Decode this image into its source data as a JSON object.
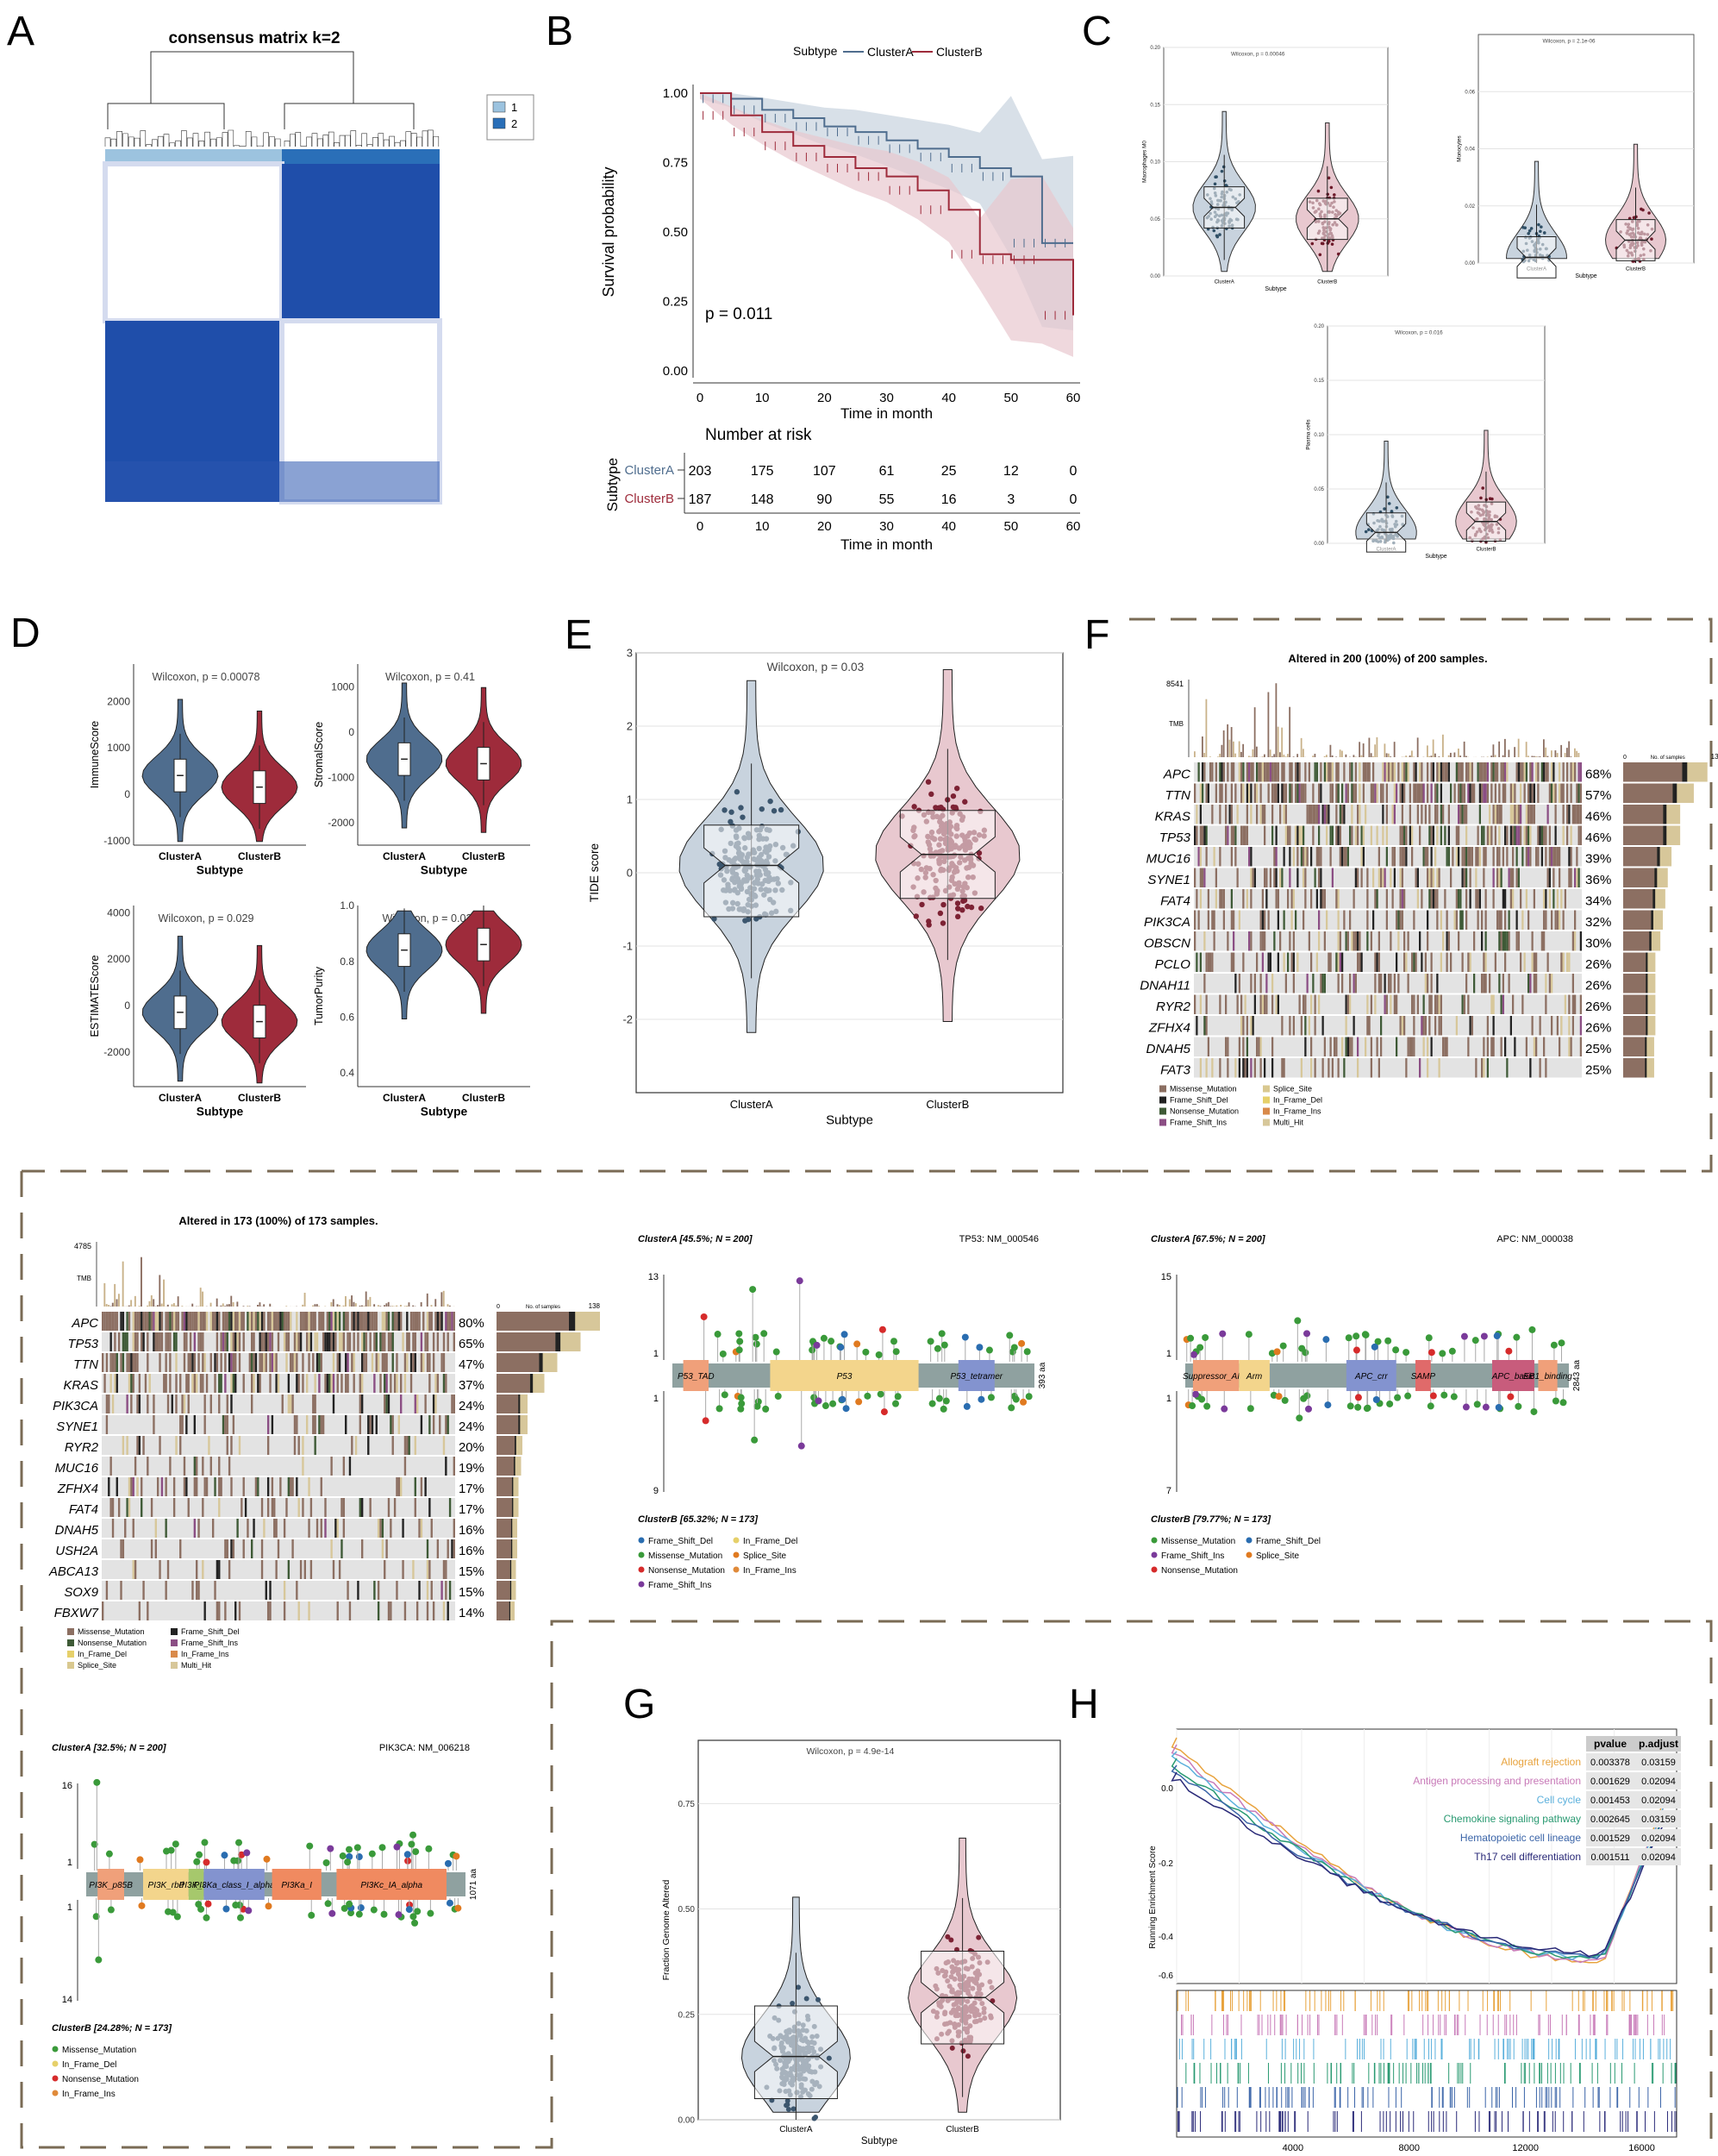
{
  "panel_letters": [
    "A",
    "B",
    "C",
    "D",
    "E",
    "F",
    "G",
    "H"
  ],
  "panelA": {
    "title": "consensus matrix k=2",
    "legend": [
      "1",
      "2"
    ]
  },
  "chart_data": [
    {
      "panel": "B",
      "type": "line",
      "legend_title": "Subtype",
      "series": [
        {
          "name": "ClusterA",
          "x": [
            0,
            5,
            10,
            15,
            20,
            25,
            30,
            35,
            40,
            45,
            50,
            55,
            60
          ],
          "y": [
            1.0,
            0.98,
            0.94,
            0.91,
            0.88,
            0.86,
            0.83,
            0.8,
            0.77,
            0.73,
            0.7,
            0.46,
            0.46
          ]
        },
        {
          "name": "ClusterB",
          "x": [
            0,
            5,
            10,
            15,
            20,
            25,
            30,
            35,
            40,
            45,
            50,
            55,
            60
          ],
          "y": [
            1.0,
            0.92,
            0.86,
            0.81,
            0.77,
            0.73,
            0.7,
            0.65,
            0.58,
            0.42,
            0.4,
            0.4,
            0.2
          ]
        }
      ],
      "xlabel": "Time in month",
      "ylabel": "Survival probability",
      "xlim": [
        0,
        60
      ],
      "ylim": [
        0,
        1
      ],
      "xticks": [
        "0",
        "10",
        "20",
        "30",
        "40",
        "50",
        "60"
      ],
      "yticks": [
        "0.00",
        "0.25",
        "0.50",
        "0.75",
        "1.00"
      ],
      "annotation": "p = 0.011",
      "risk_table": {
        "title": "Number at risk",
        "ylabel": "Subtype",
        "rows": [
          {
            "name": "ClusterA",
            "values": [
              "203",
              "175",
              "107",
              "61",
              "25",
              "12",
              "0"
            ]
          },
          {
            "name": "ClusterB",
            "values": [
              "187",
              "148",
              "90",
              "55",
              "16",
              "3",
              "0"
            ]
          }
        ],
        "xlabel": "Time in month"
      }
    },
    {
      "panel": "C1",
      "type": "box",
      "title": "Wilcoxon, p = 0.00046",
      "ylabel": "Macrophages M0",
      "xlabel": "Subtype",
      "categories": [
        "ClusterA",
        "ClusterB"
      ],
      "medians": [
        0.06,
        0.05
      ],
      "ylim": [
        0,
        0.2
      ],
      "yticks": [
        "0.00",
        "0.05",
        "0.10",
        "0.15",
        "0.20"
      ]
    },
    {
      "panel": "C2",
      "type": "box",
      "title": "Wilcoxon, p = 2.1e-06",
      "ylabel": "Monocytes",
      "xlabel": "Subtype",
      "categories": [
        "ClusterA",
        "ClusterB"
      ],
      "medians": [
        0.002,
        0.008
      ],
      "ylim": [
        0,
        0.08
      ],
      "yticks": [
        "0.00",
        "0.02",
        "0.04",
        "0.06"
      ]
    },
    {
      "panel": "C3",
      "type": "box",
      "title": "Wilcoxon, p = 0.016",
      "ylabel": "Plasma cells",
      "xlabel": "Subtype",
      "categories": [
        "ClusterA",
        "ClusterB"
      ],
      "medians": [
        0.01,
        0.02
      ],
      "ylim": [
        0,
        0.2
      ],
      "yticks": [
        "0.00",
        "0.05",
        "0.10",
        "0.15",
        "0.20"
      ]
    },
    {
      "panel": "D1",
      "type": "violin",
      "title": "Wilcoxon, p = 0.00078",
      "ylabel": "ImmuneScore",
      "xlabel": "Subtype",
      "categories": [
        "ClusterA",
        "ClusterB"
      ],
      "medians": [
        400,
        150
      ],
      "ylim": [
        -1100,
        2800
      ],
      "yticks": [
        "-1000",
        "0",
        "1000",
        "2000"
      ]
    },
    {
      "panel": "D2",
      "type": "violin",
      "title": "Wilcoxon, p = 0.41",
      "ylabel": "StromalScore",
      "xlabel": "Subtype",
      "categories": [
        "ClusterA",
        "ClusterB"
      ],
      "medians": [
        -600,
        -700
      ],
      "ylim": [
        -2500,
        1500
      ],
      "yticks": [
        "-2000",
        "-1000",
        "0",
        "1000"
      ]
    },
    {
      "panel": "D3",
      "type": "violin",
      "title": "Wilcoxon, p = 0.029",
      "ylabel": "ESTIMATEScore",
      "xlabel": "Subtype",
      "categories": [
        "ClusterA",
        "ClusterB"
      ],
      "medians": [
        -300,
        -700
      ],
      "ylim": [
        -3500,
        4300
      ],
      "yticks": [
        "-2000",
        "0",
        "2000",
        "4000"
      ]
    },
    {
      "panel": "D4",
      "type": "violin",
      "title": "Wilcoxon, p = 0.029",
      "ylabel": "TumorPurity",
      "xlabel": "Subtype",
      "categories": [
        "ClusterA",
        "ClusterB"
      ],
      "medians": [
        0.84,
        0.86
      ],
      "ylim": [
        0.35,
        1.0
      ],
      "yticks": [
        "0.4",
        "0.6",
        "0.8",
        "1.0"
      ]
    },
    {
      "panel": "E",
      "type": "violin",
      "title": "Wilcoxon, p = 0.03",
      "ylabel": "TIDE score",
      "xlabel": "Subtype",
      "categories": [
        "ClusterA",
        "ClusterB"
      ],
      "medians": [
        0.1,
        0.25
      ],
      "q1": [
        -0.6,
        -0.35
      ],
      "q3": [
        0.65,
        0.85
      ],
      "ylim": [
        -3,
        3
      ],
      "yticks": [
        "-2",
        "-1",
        "0",
        "1",
        "2",
        "3"
      ]
    },
    {
      "panel": "G",
      "type": "violin",
      "title": "Wilcoxon, p = 4.9e-14",
      "ylabel": "Fraction Genome Altered",
      "xlabel": "Subtype",
      "categories": [
        "ClusterA",
        "ClusterB"
      ],
      "medians": [
        0.15,
        0.29
      ],
      "q1": [
        0.05,
        0.18
      ],
      "q3": [
        0.27,
        0.4
      ],
      "ylim": [
        0,
        0.9
      ],
      "yticks": [
        "0.00",
        "0.25",
        "0.50",
        "0.75"
      ]
    }
  ],
  "panelF": {
    "title": "Altered in 200 (100%) of 200 samples.",
    "tmb_max": "8541",
    "tmb_label": "TMB",
    "ns_max": "135",
    "ns_min": "0",
    "ns_label": "No. of samples",
    "genes": [
      [
        "APC",
        "68%"
      ],
      [
        "TTN",
        "57%"
      ],
      [
        "KRAS",
        "46%"
      ],
      [
        "TP53",
        "46%"
      ],
      [
        "MUC16",
        "39%"
      ],
      [
        "SYNE1",
        "36%"
      ],
      [
        "FAT4",
        "34%"
      ],
      [
        "PIK3CA",
        "32%"
      ],
      [
        "OBSCN",
        "30%"
      ],
      [
        "PCLO",
        "26%"
      ],
      [
        "DNAH11",
        "26%"
      ],
      [
        "RYR2",
        "26%"
      ],
      [
        "ZFHX4",
        "26%"
      ],
      [
        "DNAH5",
        "25%"
      ],
      [
        "FAT3",
        "25%"
      ]
    ],
    "legend": [
      "Missense_Mutation",
      "Splice_Site",
      "Frame_Shift_Del",
      "In_Frame_Del",
      "Nonsense_Mutation",
      "In_Frame_Ins",
      "Frame_Shift_Ins",
      "Multi_Hit"
    ]
  },
  "panelF2": {
    "title": "Altered in 173 (100%) of 173 samples.",
    "tmb_max": "4785",
    "tmb_label": "TMB",
    "ns_max": "138",
    "ns_min": "0",
    "ns_label": "No. of samples",
    "genes": [
      [
        "APC",
        "80%"
      ],
      [
        "TP53",
        "65%"
      ],
      [
        "TTN",
        "47%"
      ],
      [
        "KRAS",
        "37%"
      ],
      [
        "PIK3CA",
        "24%"
      ],
      [
        "SYNE1",
        "24%"
      ],
      [
        "RYR2",
        "20%"
      ],
      [
        "MUC16",
        "19%"
      ],
      [
        "ZFHX4",
        "17%"
      ],
      [
        "FAT4",
        "17%"
      ],
      [
        "DNAH5",
        "16%"
      ],
      [
        "USH2A",
        "16%"
      ],
      [
        "ABCA13",
        "15%"
      ],
      [
        "SOX9",
        "15%"
      ],
      [
        "FBXW7",
        "14%"
      ]
    ],
    "legend": [
      "Missense_Mutation",
      "Frame_Shift_Del",
      "Nonsense_Mutation",
      "Frame_Shift_Ins",
      "In_Frame_Del",
      "In_Frame_Ins",
      "Splice_Site",
      "Multi_Hit"
    ]
  },
  "lollipops": [
    {
      "id": "tp53",
      "top": "ClusterA [45.5%; N = 200]",
      "gene": "TP53: NM_000546",
      "bottom": "ClusterB [65.32%; N = 173]",
      "ymax_top": "13",
      "ymax_bottom": "9",
      "aa": "393 aa",
      "domains": [
        {
          "label": "P53_TAD",
          "s": 0.03,
          "e": 0.1,
          "color": "#f0a07a"
        },
        {
          "label": "P53",
          "s": 0.27,
          "e": 0.68,
          "color": "#f3d58c"
        },
        {
          "label": "P53_tetramer",
          "s": 0.79,
          "e": 0.89,
          "color": "#8393cf"
        }
      ],
      "legend": [
        "Frame_Shift_Del",
        "In_Frame_Del",
        "Missense_Mutation",
        "Splice_Site",
        "Nonsense_Mutation",
        "In_Frame_Ins",
        "Frame_Shift_Ins"
      ]
    },
    {
      "id": "apc",
      "top": "ClusterA [67.5%; N = 200]",
      "gene": "APC: NM_000038",
      "bottom": "ClusterB [79.77%; N = 173]",
      "ymax_top": "15",
      "ymax_bottom": "7",
      "aa": "2843 aa",
      "domains": [
        {
          "label": "Suppressor_APC",
          "s": 0.02,
          "e": 0.14,
          "color": "#f0a07a"
        },
        {
          "label": "Arm",
          "s": 0.14,
          "e": 0.22,
          "color": "#f3d58c"
        },
        {
          "label": "APC_crr",
          "s": 0.42,
          "e": 0.55,
          "color": "#8393cf"
        },
        {
          "label": "SAMP",
          "s": 0.6,
          "e": 0.64,
          "color": "#e06a6a"
        },
        {
          "label": "APC_basic",
          "s": 0.8,
          "e": 0.91,
          "color": "#c85c7c"
        },
        {
          "label": "EB1_binding",
          "s": 0.92,
          "e": 0.97,
          "color": "#f0a07a"
        }
      ],
      "legend": [
        "Missense_Mutation",
        "Frame_Shift_Del",
        "Frame_Shift_Ins",
        "Splice_Site",
        "Nonsense_Mutation"
      ]
    },
    {
      "id": "pik3ca",
      "top": "ClusterA [32.5%; N = 200]",
      "gene": "PIK3CA: NM_006218",
      "bottom": "ClusterB [24.28%; N = 173]",
      "ymax_top": "16",
      "ymax_bottom": "14",
      "aa": "1071 aa",
      "domains": [
        {
          "label": "PI3K_p85B",
          "s": 0.03,
          "e": 0.1,
          "color": "#f0a07a"
        },
        {
          "label": "PI3K_rbd",
          "s": 0.15,
          "e": 0.27,
          "color": "#f3d58c"
        },
        {
          "label": "PI3K_C2",
          "s": 0.27,
          "e": 0.31,
          "color": "#a6c86c"
        },
        {
          "label": "PI3Ka_class_I_alpha",
          "s": 0.31,
          "e": 0.47,
          "color": "#8393cf"
        },
        {
          "label": "PI3Ka_I",
          "s": 0.49,
          "e": 0.62,
          "color": "#f08a60"
        },
        {
          "label": "PI3Kc_IA_alpha",
          "s": 0.66,
          "e": 0.95,
          "color": "#f08a60"
        }
      ],
      "legend": [
        "Missense_Mutation",
        "In_Frame_Del",
        "Nonsense_Mutation",
        "In_Frame_Ins"
      ]
    }
  ],
  "panelH": {
    "ylabel": "Running Enrichment Score",
    "yticks": [
      "0.0",
      "-0.2",
      "-0.4",
      "-0.6"
    ],
    "xticks": [
      "4000",
      "8000",
      "12000",
      "16000"
    ],
    "table_headers": [
      "pvalue",
      "p.adjust"
    ],
    "rows": [
      {
        "name": "Allograft rejection",
        "color": "#e8a33d",
        "pvalue": "0.003378",
        "padj": "0.03159"
      },
      {
        "name": "Antigen processing and presentation",
        "color": "#c87ab8",
        "pvalue": "0.001629",
        "padj": "0.02094"
      },
      {
        "name": "Cell cycle",
        "color": "#5bb0dc",
        "pvalue": "0.001453",
        "padj": "0.02094"
      },
      {
        "name": "Chemokine signaling pathway",
        "color": "#2a9a72",
        "pvalue": "0.002645",
        "padj": "0.03159"
      },
      {
        "name": "Hematopoietic cell lineage",
        "color": "#3a64a8",
        "pvalue": "0.001529",
        "padj": "0.02094"
      },
      {
        "name": "Th17 cell differentiation",
        "color": "#2a2a78",
        "pvalue": "0.001511",
        "padj": "0.02094"
      }
    ]
  },
  "colors": {
    "clusterA": "#4f6d8e",
    "clusterB": "#9e2b3b",
    "clusterA_light": "#c8d3de",
    "clusterB_light": "#e8c8cf",
    "heat": "#1f4eaa"
  }
}
